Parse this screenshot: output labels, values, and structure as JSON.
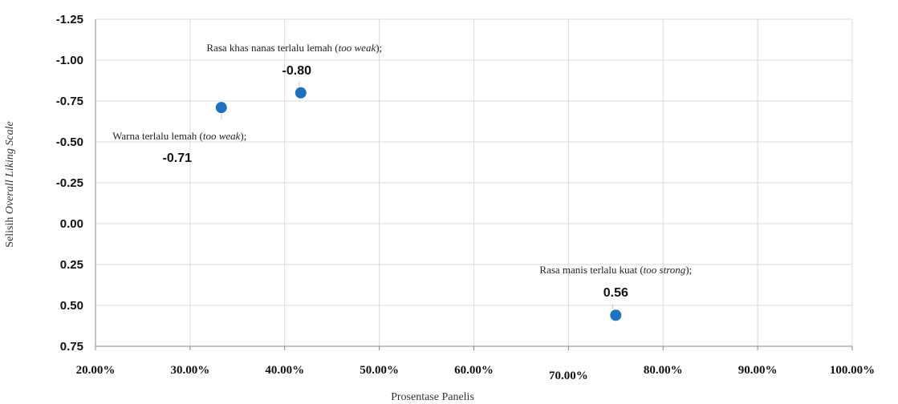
{
  "chart_data": {
    "type": "scatter",
    "xlabel": "Prosentase Panelis",
    "ylabel_prefix": "Selisih ",
    "ylabel_italic": "Overall Liking Scale",
    "xlim": [
      0.2,
      1.0
    ],
    "ylim": [
      0.75,
      -1.25
    ],
    "y_axis_reversed": true,
    "x_ticks": [
      "20.00%",
      "30.00%",
      "40.00%",
      "50.00%",
      "60.00%",
      "70.00%",
      "80.00%",
      "90.00%",
      "100.00%"
    ],
    "x_tick_values": [
      0.2,
      0.3,
      0.4,
      0.5,
      0.6,
      0.7,
      0.8,
      0.9,
      1.0
    ],
    "y_ticks": [
      "-1.25",
      "-1.00",
      "-0.75",
      "-0.50",
      "-0.25",
      "0.00",
      "0.25",
      "0.50",
      "0.75"
    ],
    "y_tick_values": [
      -1.25,
      -1.0,
      -0.75,
      -0.5,
      -0.25,
      0.0,
      0.25,
      0.5,
      0.75
    ],
    "grid": true,
    "marker_color": "#1f72c0",
    "points": [
      {
        "x": 0.333,
        "y": -0.71,
        "label_text": "Warna terlalu lemah (",
        "label_italic": "too weak",
        "label_end": ");",
        "value_label": "-0.71"
      },
      {
        "x": 0.417,
        "y": -0.8,
        "label_text": "Rasa khas nanas terlalu lemah (",
        "label_italic": "too weak",
        "label_end": ");",
        "value_label": "-0.80"
      },
      {
        "x": 0.75,
        "y": 0.56,
        "label_text": "Rasa manis terlalu kuat (",
        "label_italic": "too strong",
        "label_end": ");",
        "value_label": "0.56"
      }
    ]
  }
}
